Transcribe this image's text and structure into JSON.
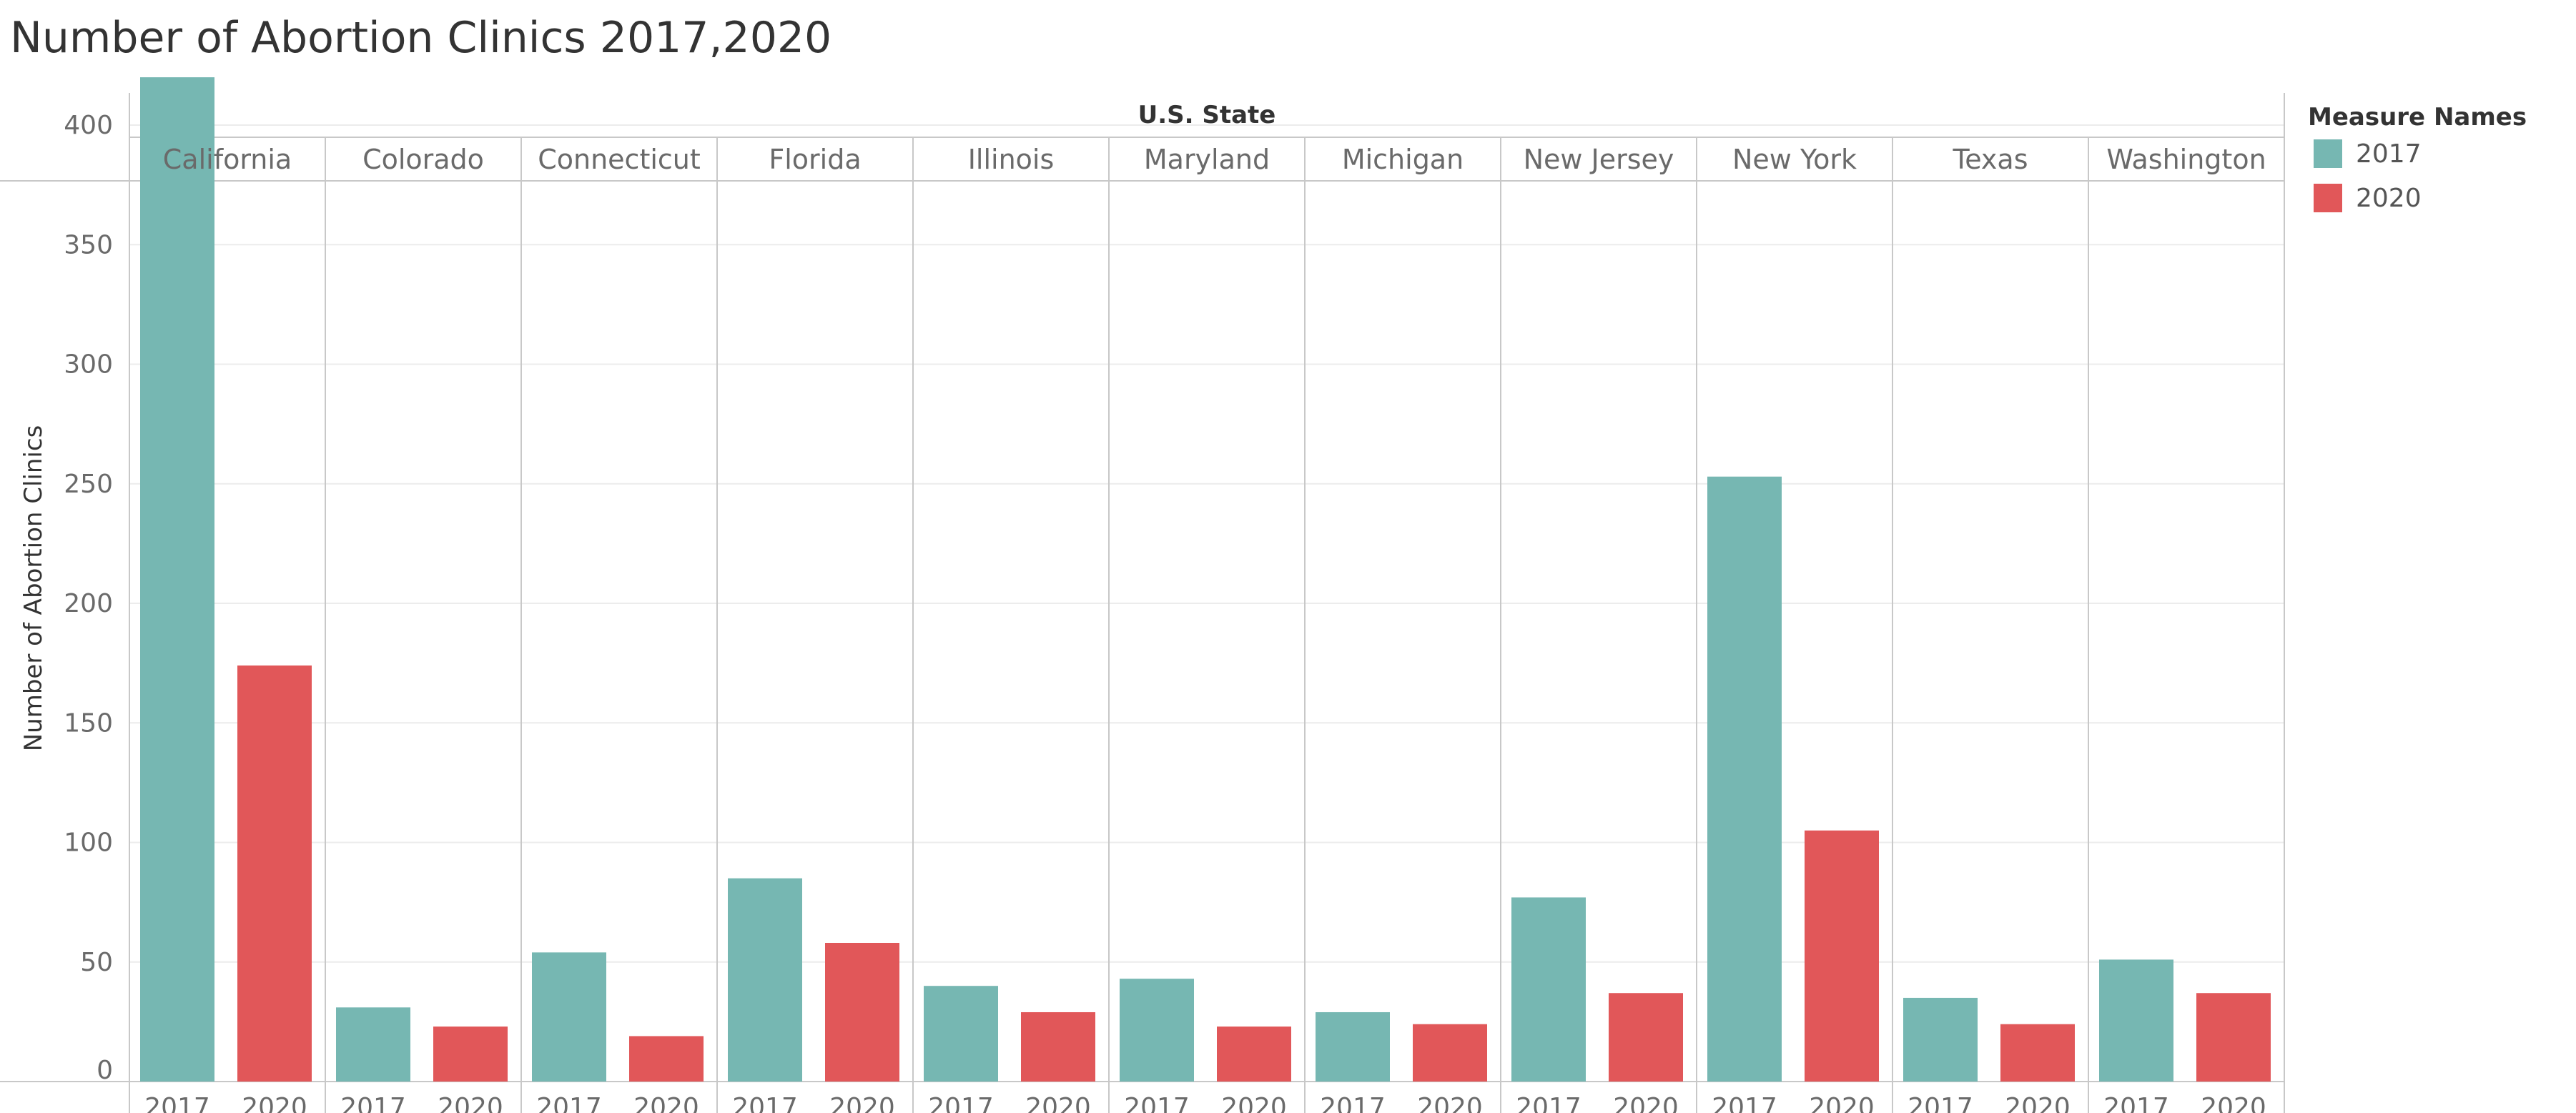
{
  "title": "Number of Abortion Clinics 2017,2020",
  "chart_data": {
    "type": "bar",
    "title": "Number of Abortion Clinics 2017,2020",
    "column_header": "U.S. State",
    "ylabel": "Number of Abortion Clinics",
    "ylim": [
      0,
      420
    ],
    "yticks": [
      0,
      50,
      100,
      150,
      200,
      250,
      300,
      350,
      400
    ],
    "grid": true,
    "legend_placement": "right",
    "legend_title": "Measure Names",
    "categories": [
      "California",
      "Colorado",
      "Connecticut",
      "Florida",
      "Illinois",
      "Maryland",
      "Michigan",
      "New Jersey",
      "New York",
      "Texas",
      "Washington"
    ],
    "series": [
      {
        "name": "2017",
        "color": "#76b7b2",
        "values": [
          420,
          31,
          54,
          85,
          40,
          43,
          29,
          77,
          253,
          35,
          51
        ]
      },
      {
        "name": "2020",
        "color": "#e15759",
        "values": [
          174,
          23,
          19,
          58,
          29,
          23,
          24,
          37,
          105,
          24,
          37
        ]
      }
    ]
  }
}
